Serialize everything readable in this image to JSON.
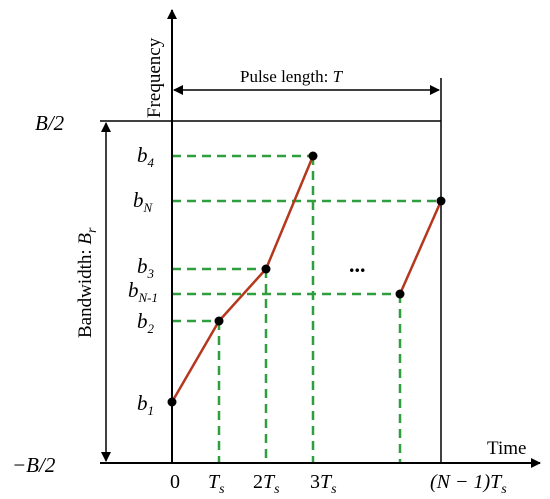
{
  "axes": {
    "y_label": "Frequency",
    "x_label": "Time"
  },
  "pulse": {
    "label_prefix": "Pulse length: ",
    "label_symbol": "T"
  },
  "bandwidth": {
    "label_prefix": "Bandwidth: ",
    "label_symbol": "B",
    "label_subscript": "r"
  },
  "y_ticks": {
    "top": "B/2",
    "bottom": "−B/2"
  },
  "x_ticks": {
    "zero": "0",
    "ts": "T",
    "ts_sub": "s",
    "two_ts_coef": "2",
    "two_ts_sym": "T",
    "two_ts_sub": "s",
    "three_ts_coef": "3",
    "three_ts_sym": "T",
    "three_ts_sub": "s",
    "last_paren": "(N − 1)",
    "last_sym": "T",
    "last_sub": "s"
  },
  "levels": {
    "b1": {
      "base": "b",
      "sub": "1"
    },
    "b2": {
      "base": "b",
      "sub": "2"
    },
    "b3": {
      "base": "b",
      "sub": "3"
    },
    "b4": {
      "base": "b",
      "sub": "4"
    },
    "bN1": {
      "base": "b",
      "sub": "N-1"
    },
    "bN": {
      "base": "b",
      "sub": "N"
    }
  },
  "ellipsis": "...",
  "colors": {
    "axis": "#000000",
    "segment": "#b5371d",
    "guide": "#2e9e3e",
    "point": "#000000"
  }
}
